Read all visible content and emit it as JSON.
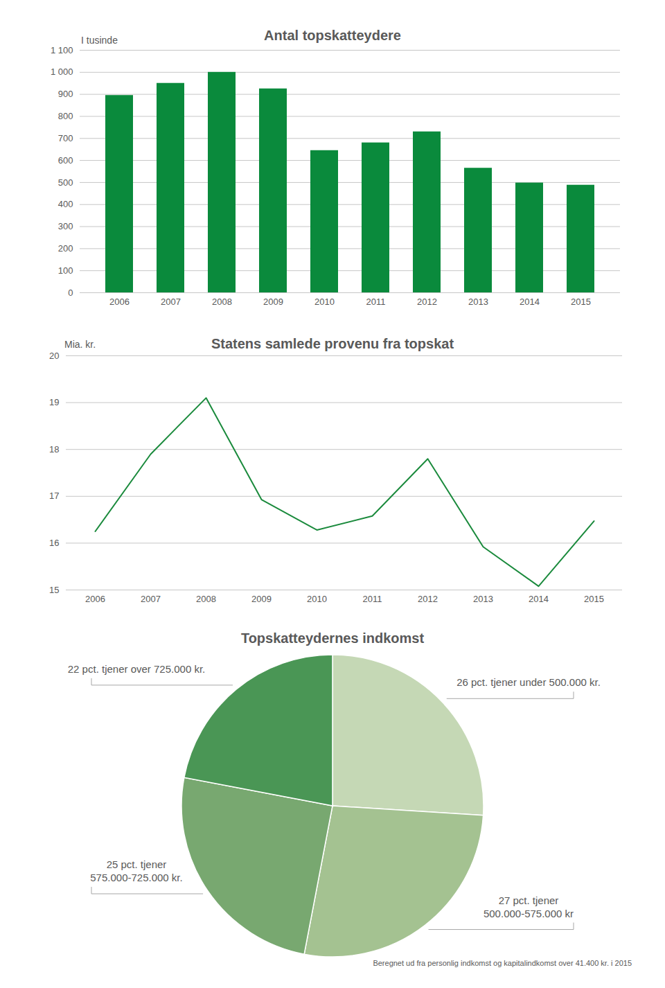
{
  "chart_data": [
    {
      "type": "bar",
      "title": "Antal topskatteydere",
      "ylabel": "I tusinde",
      "categories": [
        "2006",
        "2007",
        "2008",
        "2009",
        "2010",
        "2011",
        "2012",
        "2013",
        "2014",
        "2015"
      ],
      "values": [
        895,
        950,
        1000,
        925,
        645,
        680,
        730,
        565,
        498,
        488
      ],
      "color": "#0a8a3c",
      "ylim": [
        0,
        1100
      ],
      "yticks": [
        0,
        100,
        200,
        300,
        400,
        500,
        600,
        700,
        800,
        900,
        {
          "value": 1000,
          "label": "1 000"
        },
        {
          "value": 1100,
          "label": "1 100"
        }
      ],
      "grid": true
    },
    {
      "type": "line",
      "title": "Statens samlede provenu fra topskat",
      "ylabel": "Mia. kr.",
      "categories": [
        "2006",
        "2007",
        "2008",
        "2009",
        "2010",
        "2011",
        "2012",
        "2013",
        "2014",
        "2015"
      ],
      "values": [
        16.25,
        17.9,
        19.1,
        16.93,
        16.28,
        16.58,
        17.8,
        15.92,
        15.08,
        16.47
      ],
      "color": "#1a8a3c",
      "ylim": [
        15,
        20
      ],
      "yticks": [
        15,
        16,
        17,
        18,
        19,
        20
      ],
      "grid": true
    },
    {
      "type": "pie",
      "title": "Topskatteydernes indkomst",
      "values": [
        26,
        27,
        25,
        22
      ],
      "value_labels": [
        "26 pct. tjener under 500.000 kr.",
        "27 pct. tjener\n500.000-575.000 kr",
        "25 pct. tjener\n575.000-725.000 kr.",
        "22 pct. tjener over 725.000 kr."
      ],
      "colors": [
        "#c5d8b5",
        "#a4c291",
        "#78a870",
        "#4a9655"
      ],
      "data_labels": true,
      "caption": "Beregnet ud fra personlig indkomst og kapitalindkomst over 41.400 kr. i 2015"
    }
  ]
}
